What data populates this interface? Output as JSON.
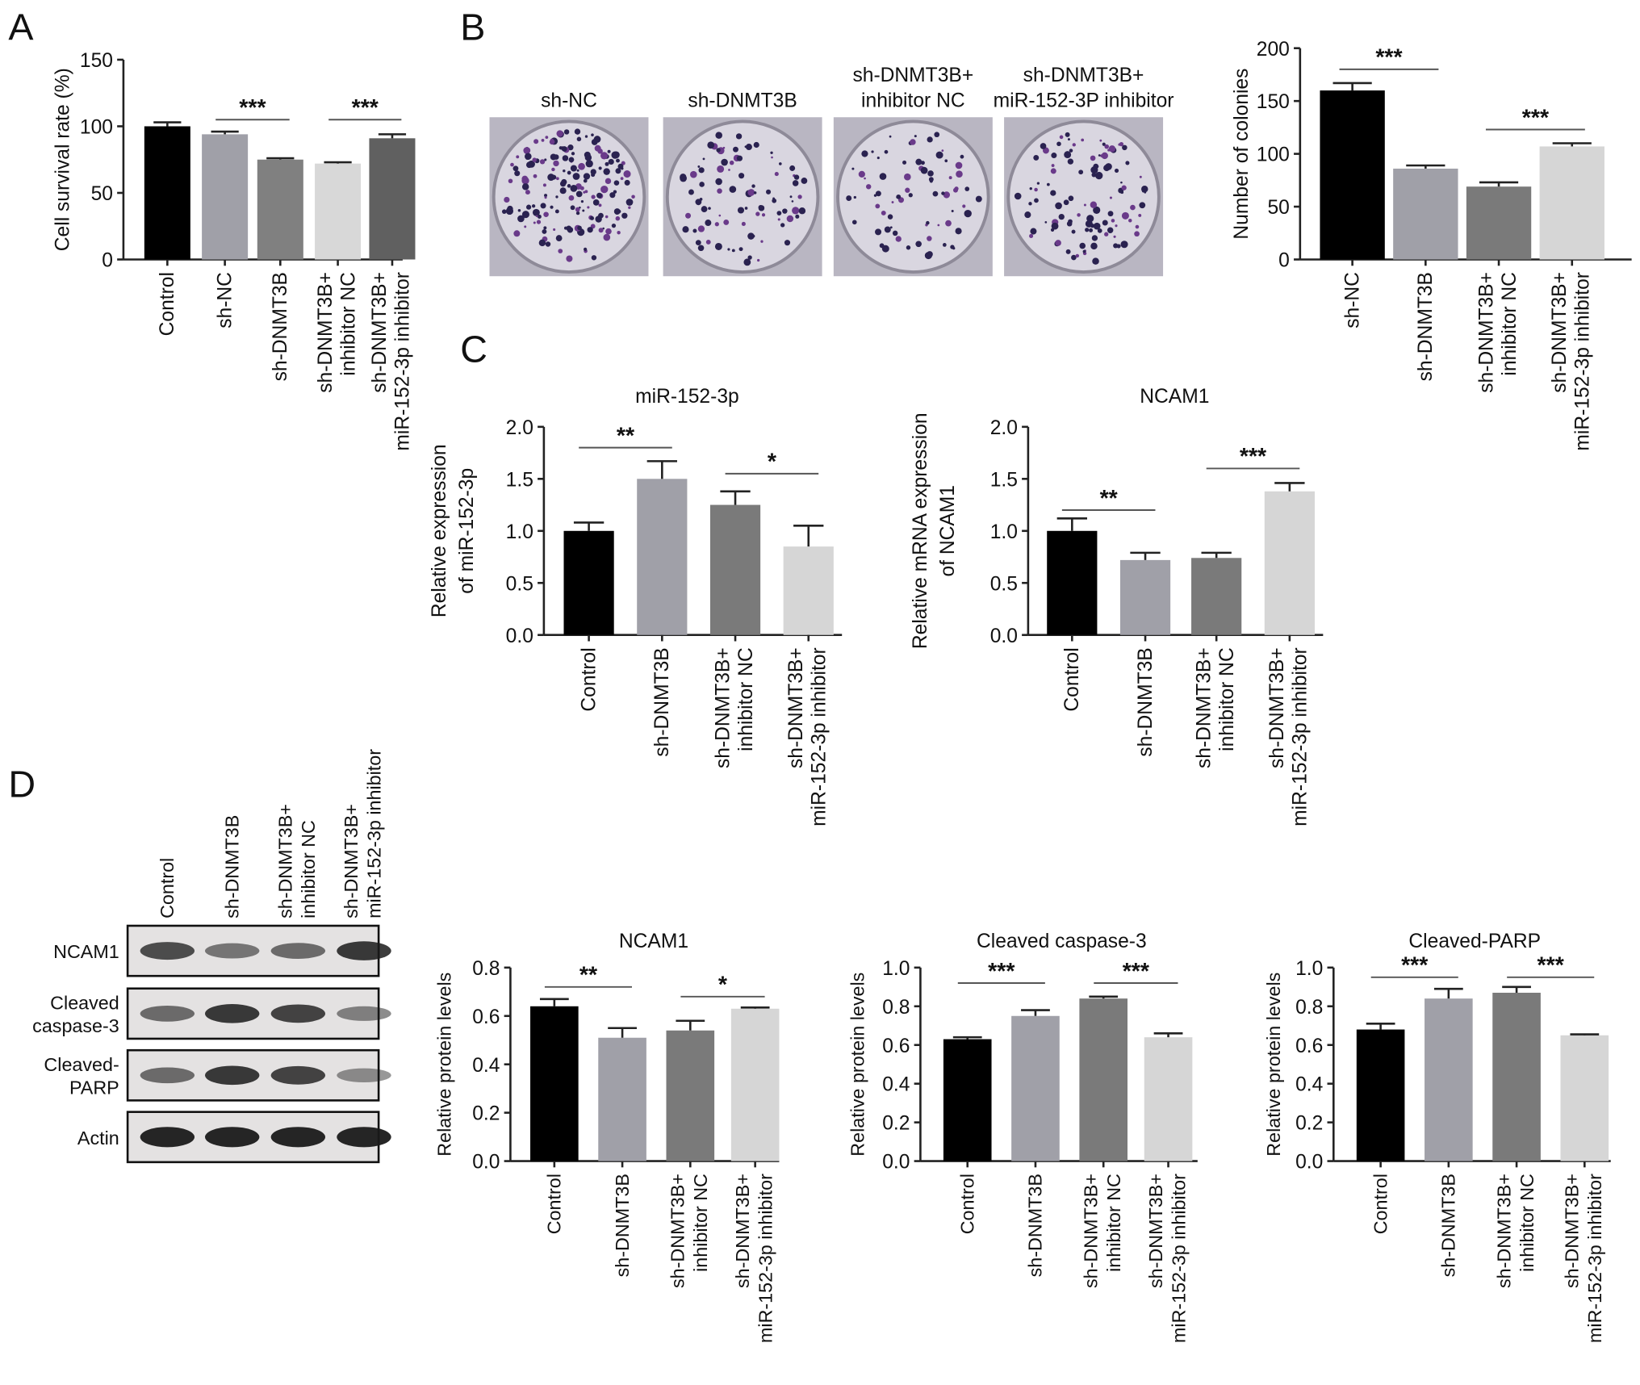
{
  "panel_letters": [
    "A",
    "B",
    "C",
    "D"
  ],
  "plates": {
    "labels": [
      [
        "sh-NC"
      ],
      [
        "sh-DNMT3B"
      ],
      [
        "sh-DNMT3B+",
        "inhibitor NC"
      ],
      [
        "sh-DNMT3B+",
        "miR-152-3P inhibitor"
      ]
    ]
  },
  "western_blot": {
    "lanes": [
      [
        "Control"
      ],
      [
        "sh-DNMT3B"
      ],
      [
        "sh-DNMT3B+",
        "inhibitor NC"
      ],
      [
        "sh-DNMT3B+",
        "miR-152-3p inhibitor"
      ]
    ],
    "rows": [
      {
        "label": [
          "NCAM1"
        ],
        "intensity": [
          0.75,
          0.55,
          0.6,
          0.85
        ]
      },
      {
        "label": [
          "Cleaved",
          "caspase-3"
        ],
        "intensity": [
          0.6,
          0.85,
          0.8,
          0.5
        ]
      },
      {
        "label": [
          "Cleaved-",
          "PARP"
        ],
        "intensity": [
          0.6,
          0.85,
          0.8,
          0.45
        ]
      },
      {
        "label": [
          "Actin"
        ],
        "intensity": [
          0.95,
          0.95,
          0.95,
          0.95
        ]
      }
    ]
  },
  "chart_data": [
    {
      "id": "A",
      "type": "bar",
      "title": "",
      "ylabel": [
        "Cell survival rate (%)"
      ],
      "ylim": [
        0,
        150
      ],
      "ticks": [
        "0",
        "50",
        "100",
        "150"
      ],
      "tick_values": [
        0,
        50,
        100,
        150
      ],
      "categories": [
        [
          "Control"
        ],
        [
          "sh-NC"
        ],
        [
          "sh-DNMT3B"
        ],
        [
          "sh-DNMT3B+",
          "inhibitor NC"
        ],
        [
          "sh-DNMT3B+",
          "miR-152-3p inhibitor"
        ]
      ],
      "values": [
        100,
        94,
        75,
        72,
        91
      ],
      "errors": [
        3,
        2,
        1,
        1,
        3
      ],
      "colors": [
        "#000000",
        "#a0a0a8",
        "#808080",
        "#d8d8d8",
        "#606060"
      ],
      "significance": [
        {
          "from": 1,
          "to": 2,
          "y": 105,
          "label": "***"
        },
        {
          "from": 3,
          "to": 4,
          "y": 105,
          "label": "***"
        }
      ]
    },
    {
      "id": "B",
      "type": "bar",
      "title": "",
      "ylabel": [
        "Number of colonies"
      ],
      "ylim": [
        0,
        200
      ],
      "ticks": [
        "0",
        "50",
        "100",
        "150",
        "200"
      ],
      "tick_values": [
        0,
        50,
        100,
        150,
        200
      ],
      "categories": [
        [
          "sh-NC"
        ],
        [
          "sh-DNMT3B"
        ],
        [
          "sh-DNMT3B+",
          "inhibitor NC"
        ],
        [
          "sh-DNMT3B+",
          "miR-152-3p inhibitor"
        ]
      ],
      "values": [
        160,
        86,
        69,
        107
      ],
      "errors": [
        7,
        3,
        4,
        3
      ],
      "colors": [
        "#000000",
        "#a0a0a8",
        "#7a7a7a",
        "#d6d6d6"
      ],
      "significance": [
        {
          "from": 0,
          "to": 1,
          "y": 180,
          "label": "***"
        },
        {
          "from": 2,
          "to": 3,
          "y": 123,
          "label": "***"
        }
      ]
    },
    {
      "id": "C1",
      "type": "bar",
      "title": "miR-152-3p",
      "ylabel": [
        "Relative expression",
        "of miR-152-3p"
      ],
      "ylim": [
        0,
        2
      ],
      "ticks": [
        "0.0",
        "0.5",
        "1.0",
        "1.5",
        "2.0"
      ],
      "tick_values": [
        0,
        0.5,
        1,
        1.5,
        2
      ],
      "categories": [
        [
          "Control"
        ],
        [
          "sh-DNMT3B"
        ],
        [
          "sh-DNMT3B+",
          "inhibitor NC"
        ],
        [
          "sh-DNMT3B+",
          "miR-152-3p inhibitor"
        ]
      ],
      "values": [
        1.0,
        1.5,
        1.25,
        0.85
      ],
      "errors": [
        0.08,
        0.17,
        0.13,
        0.2
      ],
      "colors": [
        "#000000",
        "#a0a0a8",
        "#7a7a7a",
        "#d6d6d6"
      ],
      "significance": [
        {
          "from": 0,
          "to": 1,
          "y": 1.8,
          "label": "**"
        },
        {
          "from": 2,
          "to": 3,
          "y": 1.55,
          "label": "*"
        }
      ]
    },
    {
      "id": "C2",
      "type": "bar",
      "title": "NCAM1",
      "ylabel": [
        "Relative mRNA expression",
        "of NCAM1"
      ],
      "ylim": [
        0,
        2
      ],
      "ticks": [
        "0.0",
        "0.5",
        "1.0",
        "1.5",
        "2.0"
      ],
      "tick_values": [
        0,
        0.5,
        1,
        1.5,
        2
      ],
      "categories": [
        [
          "Control"
        ],
        [
          "sh-DNMT3B"
        ],
        [
          "sh-DNMT3B+",
          "inhibitor NC"
        ],
        [
          "sh-DNMT3B+",
          "miR-152-3p inhibitor"
        ]
      ],
      "values": [
        1.0,
        0.72,
        0.74,
        1.38
      ],
      "errors": [
        0.12,
        0.07,
        0.05,
        0.08
      ],
      "colors": [
        "#000000",
        "#a0a0a8",
        "#7a7a7a",
        "#d6d6d6"
      ],
      "significance": [
        {
          "from": 0,
          "to": 1,
          "y": 1.2,
          "label": "**"
        },
        {
          "from": 2,
          "to": 3,
          "y": 1.6,
          "label": "***"
        }
      ]
    },
    {
      "id": "D1",
      "type": "bar",
      "title": "NCAM1",
      "ylabel": [
        "Relative protein levels"
      ],
      "ylim": [
        0,
        0.8
      ],
      "ticks": [
        "0.0",
        "0.2",
        "0.4",
        "0.6",
        "0.8"
      ],
      "tick_values": [
        0,
        0.2,
        0.4,
        0.6,
        0.8
      ],
      "categories": [
        [
          "Control"
        ],
        [
          "sh-DNMT3B"
        ],
        [
          "sh-DNMT3B+",
          "inhibitor NC"
        ],
        [
          "sh-DNMT3B+",
          "miR-152-3p inhibitor"
        ]
      ],
      "values": [
        0.64,
        0.51,
        0.54,
        0.63
      ],
      "errors": [
        0.03,
        0.04,
        0.04,
        0.005
      ],
      "colors": [
        "#000000",
        "#a0a0a8",
        "#7a7a7a",
        "#d6d6d6"
      ],
      "significance": [
        {
          "from": 0,
          "to": 1,
          "y": 0.72,
          "label": "**"
        },
        {
          "from": 2,
          "to": 3,
          "y": 0.68,
          "label": "*"
        }
      ]
    },
    {
      "id": "D2",
      "type": "bar",
      "title": "Cleaved caspase-3",
      "ylabel": [
        "Relative protein levels"
      ],
      "ylim": [
        0,
        1
      ],
      "ticks": [
        "0.0",
        "0.2",
        "0.4",
        "0.6",
        "0.8",
        "1.0"
      ],
      "tick_values": [
        0,
        0.2,
        0.4,
        0.6,
        0.8,
        1
      ],
      "categories": [
        [
          "Control"
        ],
        [
          "sh-DNMT3B"
        ],
        [
          "sh-DNMT3B+",
          "inhibitor NC"
        ],
        [
          "sh-DNMT3B+",
          "miR-152-3p inhibitor"
        ]
      ],
      "values": [
        0.63,
        0.75,
        0.84,
        0.64
      ],
      "errors": [
        0.01,
        0.03,
        0.01,
        0.02
      ],
      "colors": [
        "#000000",
        "#a0a0a8",
        "#7a7a7a",
        "#d6d6d6"
      ],
      "significance": [
        {
          "from": 0,
          "to": 1,
          "y": 0.92,
          "label": "***"
        },
        {
          "from": 2,
          "to": 3,
          "y": 0.92,
          "label": "***"
        }
      ]
    },
    {
      "id": "D3",
      "type": "bar",
      "title": "Cleaved-PARP",
      "ylabel": [
        "Relative protein levels"
      ],
      "ylim": [
        0,
        1
      ],
      "ticks": [
        "0.0",
        "0.2",
        "0.4",
        "0.6",
        "0.8",
        "1.0"
      ],
      "tick_values": [
        0,
        0.2,
        0.4,
        0.6,
        0.8,
        1
      ],
      "categories": [
        [
          "Control"
        ],
        [
          "sh-DNMT3B"
        ],
        [
          "sh-DNMT3B+",
          "inhibitor NC"
        ],
        [
          "sh-DNMT3B+",
          "miR-152-3p inhibitor"
        ]
      ],
      "values": [
        0.68,
        0.84,
        0.87,
        0.65
      ],
      "errors": [
        0.03,
        0.05,
        0.03,
        0.005
      ],
      "colors": [
        "#000000",
        "#a0a0a8",
        "#7a7a7a",
        "#d6d6d6"
      ],
      "significance": [
        {
          "from": 0,
          "to": 1,
          "y": 0.95,
          "label": "***"
        },
        {
          "from": 2,
          "to": 3,
          "y": 0.95,
          "label": "***"
        }
      ]
    }
  ]
}
